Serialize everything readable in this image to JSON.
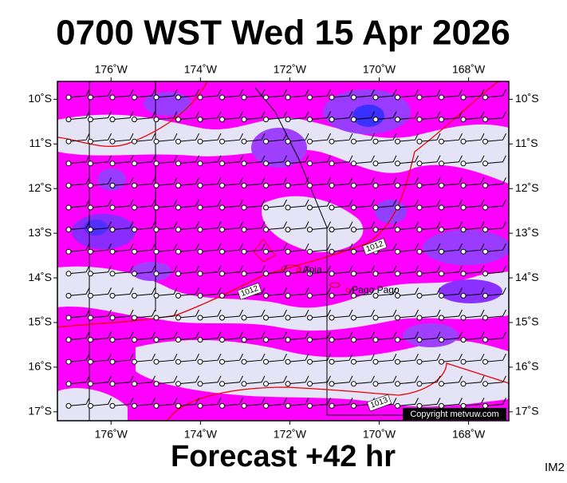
{
  "header": {
    "title": "0700 WST Wed 15 Apr 2026"
  },
  "footer": {
    "subtitle": "Forecast +42 hr",
    "code": "IM2"
  },
  "map": {
    "lon_range": [
      -177.2,
      -167.1
    ],
    "lat_range": [
      -9.6,
      -17.2
    ],
    "lon_ticks": [
      {
        "value": -176,
        "label": "176˚W"
      },
      {
        "value": -174,
        "label": "174˚W"
      },
      {
        "value": -172,
        "label": "172˚W"
      },
      {
        "value": -170,
        "label": "170˚W"
      },
      {
        "value": -168,
        "label": "168˚W"
      }
    ],
    "lat_ticks": [
      {
        "value": -10,
        "label": "10˚S"
      },
      {
        "value": -11,
        "label": "11˚S"
      },
      {
        "value": -12,
        "label": "12˚S"
      },
      {
        "value": -13,
        "label": "13˚S"
      },
      {
        "value": -14,
        "label": "14˚S"
      },
      {
        "value": -15,
        "label": "15˚S"
      },
      {
        "value": -16,
        "label": "16˚S"
      },
      {
        "value": -17,
        "label": "17˚S"
      }
    ],
    "places": [
      {
        "name": "Apia",
        "lon": -171.8,
        "lat": -13.83
      },
      {
        "name": "Pago Pago",
        "lon": -170.7,
        "lat": -14.28
      }
    ],
    "isobar_labels": [
      {
        "label": "1012",
        "lon": -170.1,
        "lat": -13.3
      },
      {
        "label": "1012",
        "lon": -172.9,
        "lat": -14.3
      },
      {
        "label": "1013",
        "lon": -170.0,
        "lat": -16.8
      }
    ],
    "copyright": "Copyright metvuw.com"
  }
}
